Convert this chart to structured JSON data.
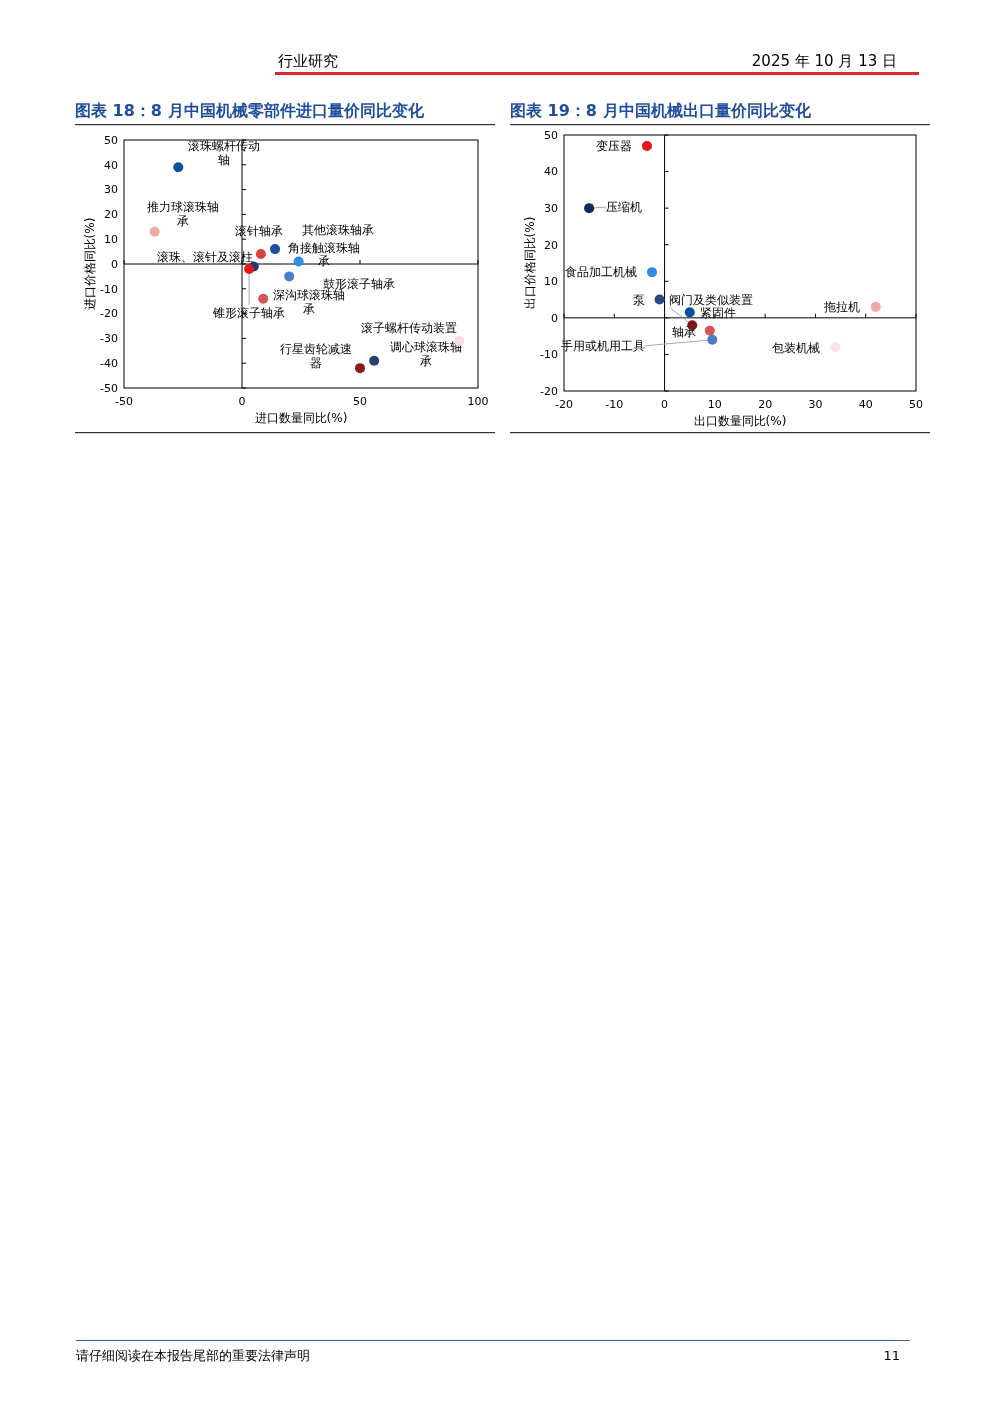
{
  "chart_data": [
    {
      "type": "scatter",
      "title": "图表 18：8 月中国机械零部件进口量价同比变化",
      "xlabel": "进口数量同比(%)",
      "ylabel": "进口价格同比(%)",
      "marker": "circle",
      "xlim": [
        -50,
        100
      ],
      "xticks": [
        -50,
        0,
        50,
        100
      ],
      "ylim": [
        -50,
        50
      ],
      "yticks": [
        -50,
        -40,
        -30,
        -20,
        -10,
        0,
        10,
        20,
        30,
        40,
        50
      ],
      "x": [
        -27,
        -37,
        14,
        8,
        24,
        20,
        5,
        3,
        9,
        92,
        56,
        50
      ],
      "values": [
        39,
        13,
        6,
        4,
        1,
        -5,
        -1,
        -2,
        -14,
        -31,
        -39,
        -42
      ],
      "colors": [
        "#0b4ea2",
        "#f0a8a8",
        "#1e4f9c",
        "#d94040",
        "#2f8de4",
        "#4a7cc9",
        "#1f3b70",
        "#e8141c",
        "#d45555",
        "#fbdcdc",
        "#253f6e",
        "#8b1a1a"
      ],
      "annotations": [
        "行业研究",
        "2025 年 10 月 13 日",
        "请仔细阅读在本报告尾部的重要法律声明",
        "11",
        {
          "text": "滚珠螺杆传动轴",
          "x": -27,
          "y": 39
        },
        {
          "text": "推力球滚珠轴承",
          "x": -37,
          "y": 13
        },
        {
          "text": "其他滚珠轴承",
          "x": 14,
          "y": 6
        },
        {
          "text": "滚针轴承",
          "x": 8,
          "y": 4
        },
        {
          "text": "角接触滚珠轴承",
          "x": 24,
          "y": 1
        },
        {
          "text": "鼓形滚子轴承",
          "x": 20,
          "y": -5
        },
        {
          "text": "滚珠、滚针及滚柱",
          "x": 5,
          "y": -1
        },
        {
          "text": "锥形滚子轴承",
          "x": 3,
          "y": -2
        },
        {
          "text": "深沟球滚珠轴承",
          "x": 9,
          "y": -14
        },
        {
          "text": "滚子螺杆传动装置",
          "x": 92,
          "y": -31
        },
        {
          "text": "调心球滚珠轴承",
          "x": 56,
          "y": -39
        },
        {
          "text": "行星齿轮减速器",
          "x": 50,
          "y": -42
        }
      ]
    },
    {
      "type": "scatter",
      "title": "图表 19：8 月中国机械出口量价同比变化",
      "xlabel": "出口数量同比(%)",
      "ylabel": "出口价格同比(%)",
      "marker": "circle",
      "xlim": [
        -20,
        50
      ],
      "xticks": [
        -20,
        -10,
        0,
        10,
        20,
        30,
        40,
        50
      ],
      "ylim": [
        -20,
        50
      ],
      "yticks": [
        -20,
        -10,
        0,
        10,
        20,
        30,
        40,
        50
      ],
      "x": [
        -3.5,
        -15,
        -2.5,
        -1,
        5,
        5.5,
        9,
        9.5,
        42,
        34
      ],
      "values": [
        47,
        30,
        12.5,
        5,
        1.5,
        -2,
        -3.5,
        -6,
        3,
        -8
      ],
      "colors": [
        "#e8141c",
        "#0f2a5a",
        "#2f8de4",
        "#2b4a80",
        "#0b4ea2",
        "#7a1a1a",
        "#d45555",
        "#4a7cc9",
        "#f0a8a8",
        "#fbe4e4"
      ],
      "annotations": [
        {
          "text": "变压器",
          "x": -3.5,
          "y": 47
        },
        {
          "text": "压缩机",
          "x": -15,
          "y": 30
        },
        {
          "text": "食品加工机械",
          "x": -2.5,
          "y": 12.5
        },
        {
          "text": "泵",
          "x": -1,
          "y": 5
        },
        {
          "text": "紧固件",
          "x": 5,
          "y": 1.5
        },
        {
          "text": "阀门及类似装置",
          "x": 5.5,
          "y": -2
        },
        {
          "text": "轴承",
          "x": 9,
          "y": -3.5
        },
        {
          "text": "手用或机用工具",
          "x": 9.5,
          "y": -6
        },
        {
          "text": "拖拉机",
          "x": 42,
          "y": 3
        },
        {
          "text": "包装机械",
          "x": 34,
          "y": -8
        }
      ]
    }
  ]
}
